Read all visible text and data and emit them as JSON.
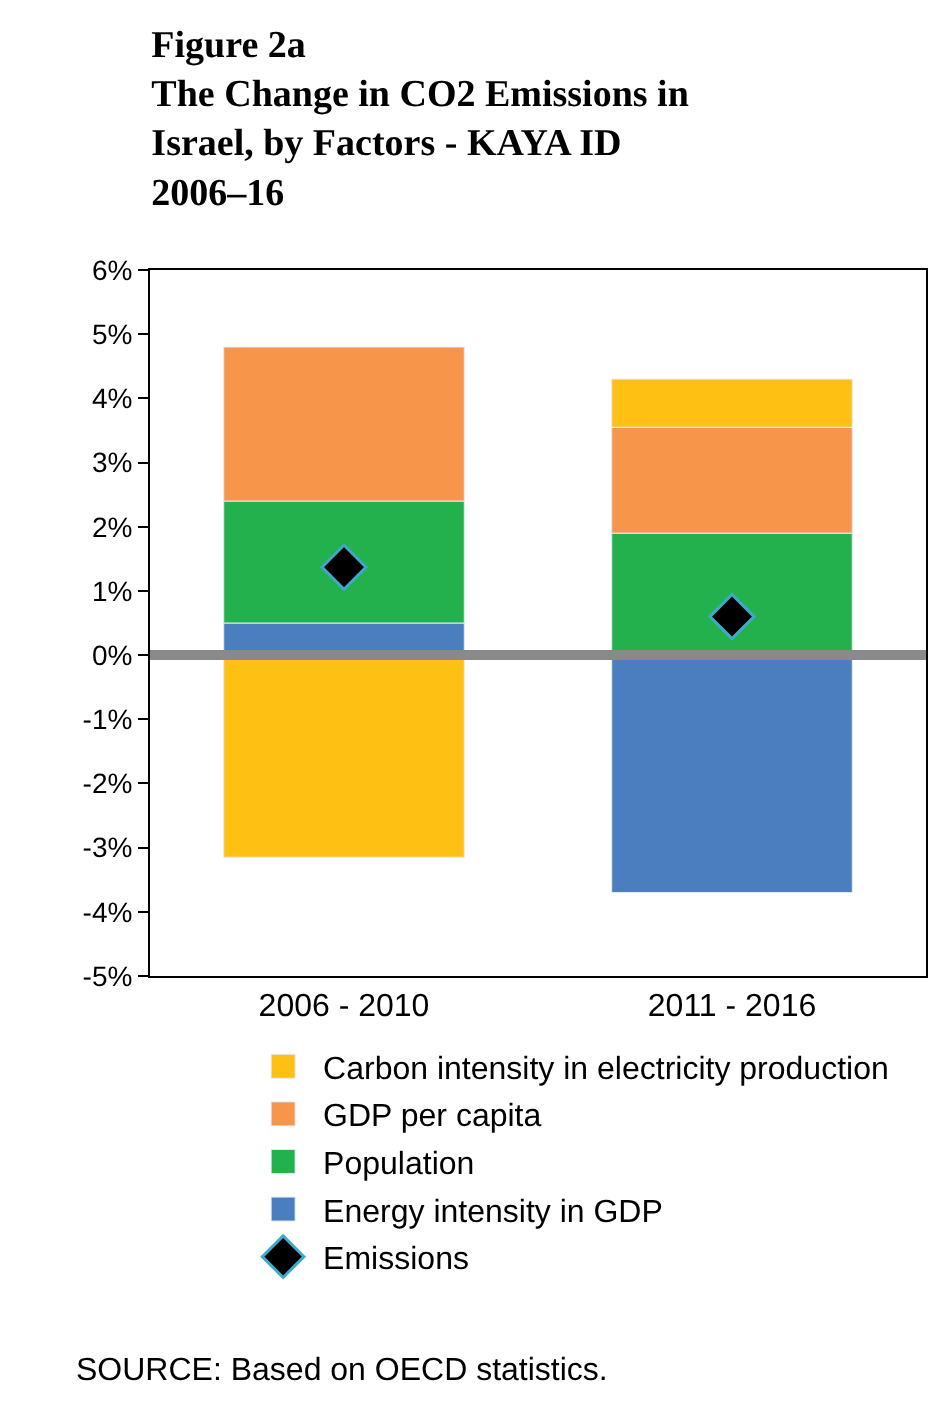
{
  "chart_data": {
    "type": "bar",
    "stacked": true,
    "title": "Figure 2a\nThe Change in CO2 Emissions in\nIsrael, by Factors - KAYA ID\n2006–16",
    "categories": [
      "2006 - 2010",
      "2011 - 2016"
    ],
    "series": [
      {
        "name": "Energy intensity in GDP",
        "color": "#4a7ebf",
        "values": [
          0.5,
          -3.7
        ]
      },
      {
        "name": "Population",
        "color": "#22b14c",
        "values": [
          1.9,
          1.9
        ]
      },
      {
        "name": "GDP per capita",
        "color": "#f7964a",
        "values": [
          2.4,
          1.65
        ]
      },
      {
        "name": "Carbon intensity in electricity production",
        "color": "#fdc013",
        "values": [
          -3.15,
          0.75
        ]
      },
      {
        "name": "Emissions",
        "type": "scatter",
        "marker": "diamond",
        "color": "#000000",
        "values": [
          1.37,
          0.6
        ]
      }
    ],
    "ylim": [
      -5,
      6
    ],
    "yticks": [
      {
        "value": -5,
        "label": "-5%"
      },
      {
        "value": -4,
        "label": "-4%"
      },
      {
        "value": -3,
        "label": "-3%"
      },
      {
        "value": -2,
        "label": "-2%"
      },
      {
        "value": -1,
        "label": "-1%"
      },
      {
        "value": 0,
        "label": "0%"
      },
      {
        "value": 1,
        "label": "1%"
      },
      {
        "value": 2,
        "label": "2%"
      },
      {
        "value": 3,
        "label": "3%"
      },
      {
        "value": 4,
        "label": "4%"
      },
      {
        "value": 5,
        "label": "5%"
      },
      {
        "value": 6,
        "label": "6%"
      }
    ],
    "ref_lines": [
      {
        "axis": "y",
        "value": 0,
        "color": "#898989"
      }
    ],
    "legend": "bottom",
    "annotations": [
      "SOURCE: Based on OECD statistics."
    ]
  }
}
